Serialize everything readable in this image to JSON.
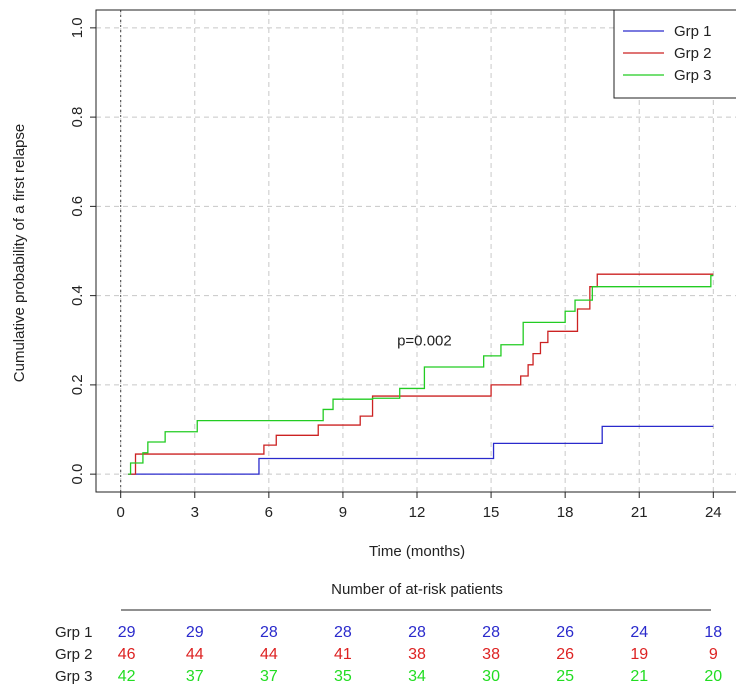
{
  "chart_data": {
    "type": "line",
    "step": true,
    "xlabel": "Time (months)",
    "ylabel": "Cumulative probability of a first relapse",
    "xlim": [
      -1,
      25
    ],
    "ylim": [
      -0.04,
      1.04
    ],
    "xticks": [
      0,
      3,
      6,
      9,
      12,
      15,
      18,
      21,
      24
    ],
    "yticks": [
      0.0,
      0.2,
      0.4,
      0.6,
      0.8,
      1.0
    ],
    "ytick_labels": [
      "0.0",
      "0.2",
      "0.4",
      "0.6",
      "0.8",
      "1.0"
    ],
    "grid": true,
    "legend_position": "top-right",
    "annotation": "p=0.002",
    "annotation_x": 12.3,
    "annotation_y": 0.3,
    "series": [
      {
        "name": "Grp 1",
        "color": "#2a2acc",
        "x": [
          0.3,
          5.6,
          15.1,
          19.5,
          24
        ],
        "y": [
          0.0,
          0.035,
          0.069,
          0.107,
          0.107
        ]
      },
      {
        "name": "Grp 2",
        "color": "#cc2222",
        "x": [
          0.3,
          0.6,
          5.8,
          6.3,
          8.0,
          9.7,
          10.2,
          15.0,
          16.2,
          16.5,
          16.7,
          17.0,
          17.3,
          18.5,
          19.0,
          19.3,
          24
        ],
        "y": [
          0.0,
          0.045,
          0.065,
          0.087,
          0.11,
          0.13,
          0.175,
          0.2,
          0.22,
          0.245,
          0.27,
          0.295,
          0.32,
          0.37,
          0.42,
          0.448,
          0.448
        ]
      },
      {
        "name": "Grp 3",
        "color": "#22cc22",
        "x": [
          0.3,
          0.4,
          0.9,
          1.1,
          1.8,
          3.1,
          8.2,
          8.6,
          10.2,
          11.3,
          12.3,
          14.7,
          15.4,
          16.3,
          18.0,
          18.4,
          19.1,
          23.9,
          24
        ],
        "y": [
          0.0,
          0.025,
          0.048,
          0.072,
          0.095,
          0.12,
          0.145,
          0.168,
          0.17,
          0.192,
          0.24,
          0.265,
          0.29,
          0.34,
          0.365,
          0.39,
          0.42,
          0.445,
          0.445
        ]
      }
    ]
  },
  "risk_table": {
    "title": "Number of at-risk patients",
    "rows": [
      {
        "label": "Grp 1",
        "color": "#2a2acc",
        "values": [
          "29",
          "29",
          "28",
          "28",
          "28",
          "28",
          "26",
          "24",
          "18"
        ]
      },
      {
        "label": "Grp 2",
        "color": "#dd2222",
        "values": [
          "46",
          "44",
          "44",
          "41",
          "38",
          "38",
          "26",
          "19",
          "9"
        ]
      },
      {
        "label": "Grp 3",
        "color": "#22dd22",
        "values": [
          "42",
          "37",
          "37",
          "35",
          "34",
          "30",
          "25",
          "21",
          "20"
        ]
      }
    ]
  }
}
